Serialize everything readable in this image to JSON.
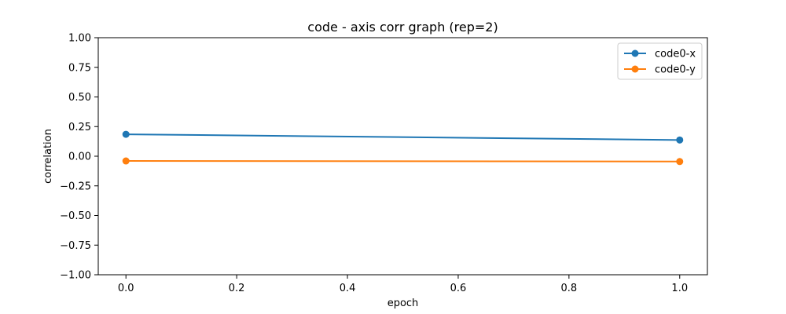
{
  "chart_data": {
    "type": "line",
    "title": "code - axis corr graph (rep=2)",
    "xlabel": "epoch",
    "ylabel": "correlation",
    "xlim": [
      -0.05,
      1.05
    ],
    "ylim": [
      -1.0,
      1.0
    ],
    "xticks": [
      "0.0",
      "0.2",
      "0.4",
      "0.6",
      "0.8",
      "1.0"
    ],
    "yticks": [
      "−1.00",
      "−0.75",
      "−0.50",
      "−0.25",
      "0.00",
      "0.25",
      "0.50",
      "0.75",
      "1.00"
    ],
    "xtick_values": [
      0.0,
      0.2,
      0.4,
      0.6,
      0.8,
      1.0
    ],
    "ytick_values": [
      -1.0,
      -0.75,
      -0.5,
      -0.25,
      0.0,
      0.25,
      0.5,
      0.75,
      1.0
    ],
    "grid": false,
    "legend": "top-right",
    "x": [
      0.0,
      1.0
    ],
    "series": [
      {
        "name": "code0-x",
        "color": "#1f77b4",
        "values": [
          0.185,
          0.137
        ]
      },
      {
        "name": "code0-y",
        "color": "#ff7f0e",
        "values": [
          -0.04,
          -0.045
        ]
      }
    ]
  }
}
